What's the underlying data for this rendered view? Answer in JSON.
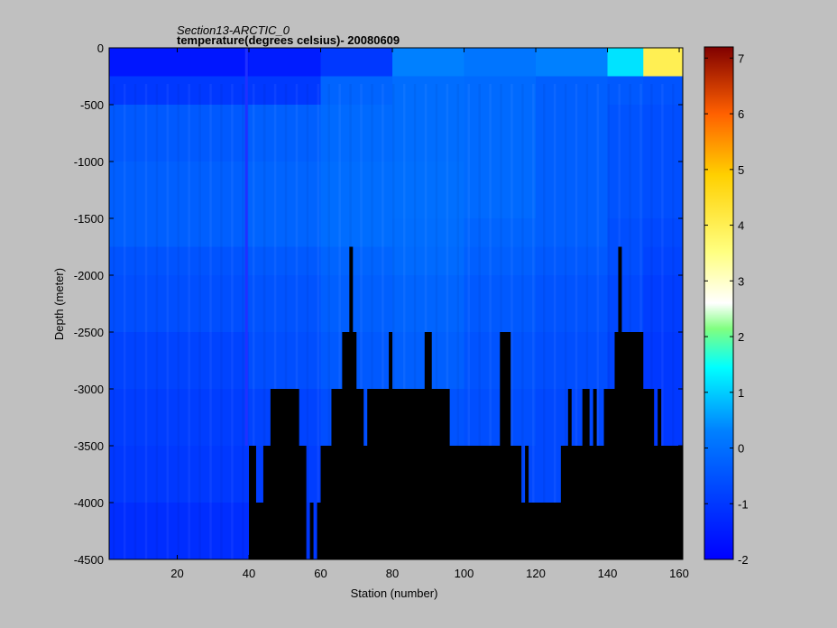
{
  "chart_data": {
    "type": "heatmap",
    "title": "Section13-ARCTIC_0",
    "subtitle": "temperature(degrees  celsius)- 20080609",
    "xlabel": "Station (number)",
    "ylabel": "Depth (meter)",
    "xlim": [
      1,
      161
    ],
    "ylim": [
      -4500,
      0
    ],
    "x_ticks": [
      20,
      40,
      60,
      80,
      100,
      120,
      140,
      160
    ],
    "y_ticks": [
      0,
      -500,
      -1000,
      -1500,
      -2000,
      -2500,
      -3000,
      -3500,
      -4000,
      -4500
    ],
    "colorbar": {
      "range": [
        -2,
        7.2
      ],
      "ticks": [
        -2,
        -1,
        0,
        1,
        2,
        3,
        4,
        5,
        6,
        7
      ],
      "colormap": "jet"
    },
    "depth_levels": [
      0,
      250,
      500,
      1000,
      1500,
      1750,
      2000,
      2500,
      3000,
      3500,
      4000,
      4500
    ],
    "temperature_profile": [
      {
        "station_range": [
          1,
          40
        ],
        "values": [
          -1.6,
          -1.0,
          -0.4,
          -0.3,
          -0.3,
          -0.5,
          -0.6,
          -0.8,
          -0.9,
          -1.0,
          -1.2
        ]
      },
      {
        "station_range": [
          40,
          60
        ],
        "values": [
          -1.5,
          -1.0,
          -0.3,
          -0.2,
          -0.2,
          -0.4,
          -0.5,
          -0.6,
          -0.8,
          -0.9,
          -1.0
        ]
      },
      {
        "station_range": [
          60,
          80
        ],
        "values": [
          -1.0,
          -0.2,
          -0.1,
          -0.05,
          -0.05,
          -0.2,
          -0.3,
          -0.4,
          -0.6,
          -0.7,
          -0.8
        ]
      },
      {
        "station_range": [
          80,
          100
        ],
        "values": [
          0.3,
          -0.05,
          -0.05,
          0.0,
          -0.05,
          -0.1,
          -0.2,
          -0.3,
          -0.5,
          -0.6,
          -0.7
        ]
      },
      {
        "station_range": [
          100,
          120
        ],
        "values": [
          0.1,
          -0.1,
          -0.1,
          -0.1,
          -0.2,
          -0.3,
          -0.4,
          -0.5,
          -0.6,
          -0.7,
          -0.7
        ]
      },
      {
        "station_range": [
          120,
          140
        ],
        "values": [
          0.3,
          -0.3,
          -0.3,
          -0.3,
          -0.3,
          -0.4,
          -0.5,
          -0.6,
          -0.7,
          -0.7,
          -0.8
        ]
      },
      {
        "station_range": [
          140,
          150
        ],
        "values": [
          1.2,
          -0.4,
          -0.5,
          -0.5,
          -0.6,
          -0.6,
          -0.7,
          -0.8,
          -0.9,
          -1.0,
          -1.0
        ]
      },
      {
        "station_range": [
          150,
          161
        ],
        "values": [
          4.0,
          -0.5,
          -0.6,
          -0.6,
          -0.7,
          -0.8,
          -0.9,
          -1.0,
          -1.0,
          -1.1,
          -1.1
        ]
      }
    ],
    "bathymetry": [
      [
        1,
        -4500
      ],
      [
        40,
        -4500
      ],
      [
        40,
        -3500
      ],
      [
        42,
        -3500
      ],
      [
        42,
        -4000
      ],
      [
        44,
        -4000
      ],
      [
        44,
        -3500
      ],
      [
        46,
        -3500
      ],
      [
        46,
        -3000
      ],
      [
        54,
        -3000
      ],
      [
        54,
        -3500
      ],
      [
        56,
        -3500
      ],
      [
        56,
        -4500
      ],
      [
        57,
        -4500
      ],
      [
        57,
        -4000
      ],
      [
        58,
        -4000
      ],
      [
        58,
        -4500
      ],
      [
        59,
        -4500
      ],
      [
        59,
        -4000
      ],
      [
        60,
        -4000
      ],
      [
        60,
        -3500
      ],
      [
        63,
        -3500
      ],
      [
        63,
        -3000
      ],
      [
        66,
        -3000
      ],
      [
        66,
        -2500
      ],
      [
        68,
        -2500
      ],
      [
        68,
        -1750
      ],
      [
        69,
        -1750
      ],
      [
        69,
        -2500
      ],
      [
        70,
        -2500
      ],
      [
        70,
        -3000
      ],
      [
        72,
        -3000
      ],
      [
        72,
        -3500
      ],
      [
        73,
        -3500
      ],
      [
        73,
        -3000
      ],
      [
        79,
        -3000
      ],
      [
        79,
        -2500
      ],
      [
        80,
        -2500
      ],
      [
        80,
        -3000
      ],
      [
        89,
        -3000
      ],
      [
        89,
        -2500
      ],
      [
        91,
        -2500
      ],
      [
        91,
        -3000
      ],
      [
        96,
        -3000
      ],
      [
        96,
        -3500
      ],
      [
        110,
        -3500
      ],
      [
        110,
        -2500
      ],
      [
        113,
        -2500
      ],
      [
        113,
        -3500
      ],
      [
        116,
        -3500
      ],
      [
        116,
        -4000
      ],
      [
        117,
        -4000
      ],
      [
        117,
        -3500
      ],
      [
        118,
        -3500
      ],
      [
        118,
        -4000
      ],
      [
        127,
        -4000
      ],
      [
        127,
        -3500
      ],
      [
        129,
        -3500
      ],
      [
        129,
        -3000
      ],
      [
        130,
        -3000
      ],
      [
        130,
        -3500
      ],
      [
        133,
        -3500
      ],
      [
        133,
        -3000
      ],
      [
        135,
        -3000
      ],
      [
        135,
        -3500
      ],
      [
        136,
        -3500
      ],
      [
        136,
        -3000
      ],
      [
        137,
        -3000
      ],
      [
        137,
        -3500
      ],
      [
        139,
        -3500
      ],
      [
        139,
        -3000
      ],
      [
        142,
        -3000
      ],
      [
        142,
        -2500
      ],
      [
        143,
        -2500
      ],
      [
        143,
        -1750
      ],
      [
        144,
        -1750
      ],
      [
        144,
        -2500
      ],
      [
        150,
        -2500
      ],
      [
        150,
        -3000
      ],
      [
        153,
        -3000
      ],
      [
        153,
        -3500
      ],
      [
        154,
        -3500
      ],
      [
        154,
        -3000
      ],
      [
        155,
        -3000
      ],
      [
        155,
        -3500
      ],
      [
        161,
        -3500
      ],
      [
        161,
        -4500
      ]
    ]
  }
}
